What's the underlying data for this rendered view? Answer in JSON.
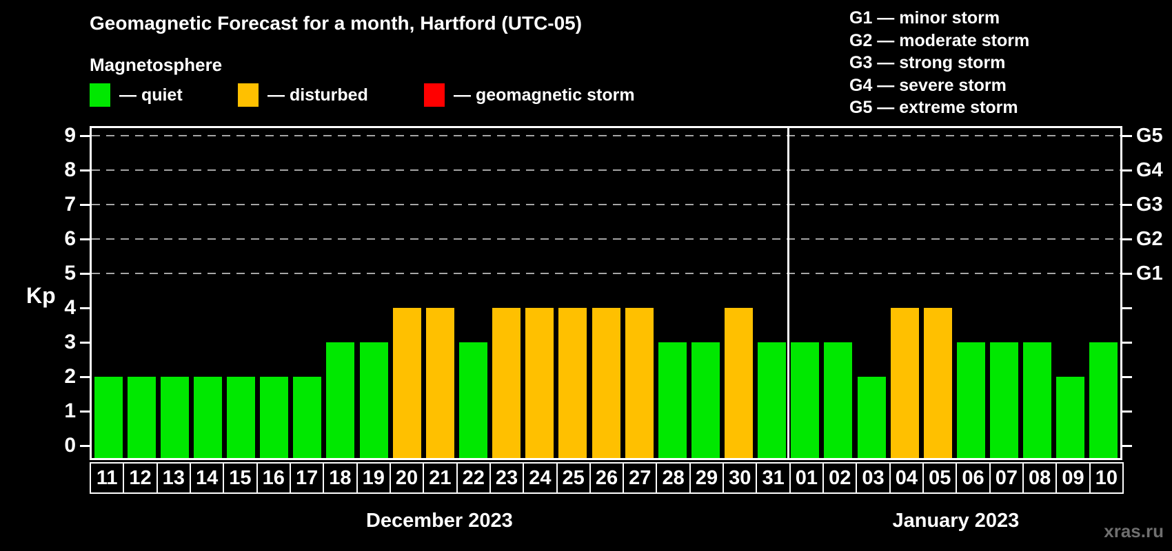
{
  "title": "Geomagnetic Forecast for a month, Hartford (UTC-05)",
  "subtitle": "Magnetosphere",
  "legend": {
    "items": [
      {
        "name": "quiet",
        "label": "— quiet",
        "color": "#00e800"
      },
      {
        "name": "disturbed",
        "label": "— disturbed",
        "color": "#ffc000"
      },
      {
        "name": "storm",
        "label": "— geomagnetic storm",
        "color": "#ff0000"
      }
    ]
  },
  "storm_scale": [
    "G1 — minor storm",
    "G2 — moderate storm",
    "G3 — strong storm",
    "G4 — severe storm",
    "G5 — extreme storm"
  ],
  "watermark": "xras.ru",
  "chart_data": {
    "type": "bar",
    "title": "Geomagnetic Forecast for a month, Hartford (UTC-05)",
    "ylabel": "Kp",
    "ylim": [
      0,
      9
    ],
    "yticks": [
      0,
      1,
      2,
      3,
      4,
      5,
      6,
      7,
      8,
      9
    ],
    "gridlines_at": [
      5,
      6,
      7,
      8,
      9
    ],
    "legend_position": "top",
    "grid": "dashed horizontal at G-storm levels",
    "categories": [
      "11",
      "12",
      "13",
      "14",
      "15",
      "16",
      "17",
      "18",
      "19",
      "20",
      "21",
      "22",
      "23",
      "24",
      "25",
      "26",
      "27",
      "28",
      "29",
      "30",
      "31",
      "01",
      "02",
      "03",
      "04",
      "05",
      "06",
      "07",
      "08",
      "09",
      "10"
    ],
    "values": [
      2,
      2,
      2,
      2,
      2,
      2,
      2,
      3,
      3,
      4,
      4,
      3,
      4,
      4,
      4,
      4,
      4,
      3,
      3,
      4,
      3,
      3,
      3,
      2,
      4,
      4,
      3,
      3,
      3,
      2,
      3
    ],
    "bar_states": [
      "quiet",
      "quiet",
      "quiet",
      "quiet",
      "quiet",
      "quiet",
      "quiet",
      "quiet",
      "quiet",
      "disturbed",
      "disturbed",
      "quiet",
      "disturbed",
      "disturbed",
      "disturbed",
      "disturbed",
      "disturbed",
      "quiet",
      "quiet",
      "disturbed",
      "quiet",
      "quiet",
      "quiet",
      "quiet",
      "disturbed",
      "disturbed",
      "quiet",
      "quiet",
      "quiet",
      "quiet",
      "quiet"
    ],
    "state_colors": {
      "quiet": "#00e800",
      "disturbed": "#ffc000",
      "storm": "#ff0000"
    },
    "months": [
      {
        "label": "December 2023",
        "count": 21
      },
      {
        "label": "January 2023",
        "count": 10
      }
    ],
    "right_scale": [
      {
        "kp": 5,
        "label": "G1"
      },
      {
        "kp": 6,
        "label": "G2"
      },
      {
        "kp": 7,
        "label": "G3"
      },
      {
        "kp": 8,
        "label": "G4"
      },
      {
        "kp": 9,
        "label": "G5"
      }
    ]
  }
}
